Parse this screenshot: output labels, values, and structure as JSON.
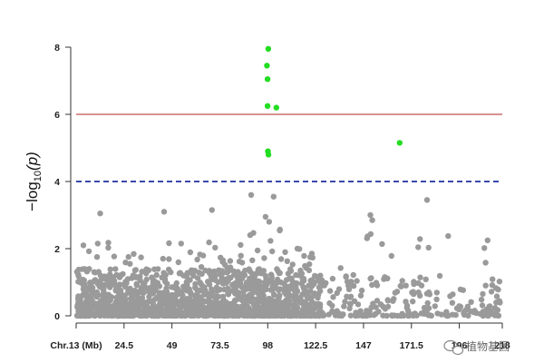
{
  "chart_data": {
    "type": "scatter",
    "title": "",
    "xlabel": "",
    "ylabel": "−log10(p)",
    "ylabel_parts": {
      "prefix": "−log",
      "sub": "10",
      "suffix": "(p)"
    },
    "x_axis_label": "Chr.13 (Mb)",
    "x_ticks": [
      24.5,
      49,
      73.5,
      98,
      122.5,
      147,
      171.5,
      196,
      218
    ],
    "x_tick_labels": [
      "24.5",
      "49",
      "73.5",
      "98",
      "122.5",
      "147",
      "171.5",
      "196",
      "218"
    ],
    "y_ticks": [
      0,
      2,
      4,
      6,
      8
    ],
    "y_tick_labels": [
      "0",
      "2",
      "4",
      "6",
      "8"
    ],
    "xlim": [
      0,
      218
    ],
    "ylim": [
      0,
      8
    ],
    "thresholds": [
      {
        "value": 6,
        "style": "solid",
        "color": "#c0504d"
      },
      {
        "value": 4,
        "style": "dashed",
        "color": "#1f2f9e"
      }
    ],
    "colors": {
      "background_points": "#9a9a9a",
      "significant_points": "#22dd22"
    },
    "significant_points": [
      {
        "x": 98.3,
        "y": 7.95
      },
      {
        "x": 97.6,
        "y": 7.45
      },
      {
        "x": 97.9,
        "y": 7.05
      },
      {
        "x": 97.9,
        "y": 6.25
      },
      {
        "x": 102.4,
        "y": 6.2
      },
      {
        "x": 98.1,
        "y": 4.9
      },
      {
        "x": 98.4,
        "y": 4.8
      },
      {
        "x": 165.5,
        "y": 5.15
      }
    ],
    "background_points_note": "dense gray markers across 0–125 Mb and sparser markers across 125–218 Mb, mostly below −log10(p)=3.6",
    "background_highlights": [
      {
        "x": 12.3,
        "y": 3.05
      },
      {
        "x": 45.0,
        "y": 3.1
      },
      {
        "x": 69.5,
        "y": 3.15
      },
      {
        "x": 89.5,
        "y": 3.6
      },
      {
        "x": 101.0,
        "y": 3.55
      },
      {
        "x": 150.5,
        "y": 3.0
      },
      {
        "x": 151.5,
        "y": 2.85
      },
      {
        "x": 179.5,
        "y": 3.45
      },
      {
        "x": 210.5,
        "y": 2.25
      }
    ]
  },
  "watermark": {
    "text": "植物基因",
    "icon": "wechat-icon"
  }
}
